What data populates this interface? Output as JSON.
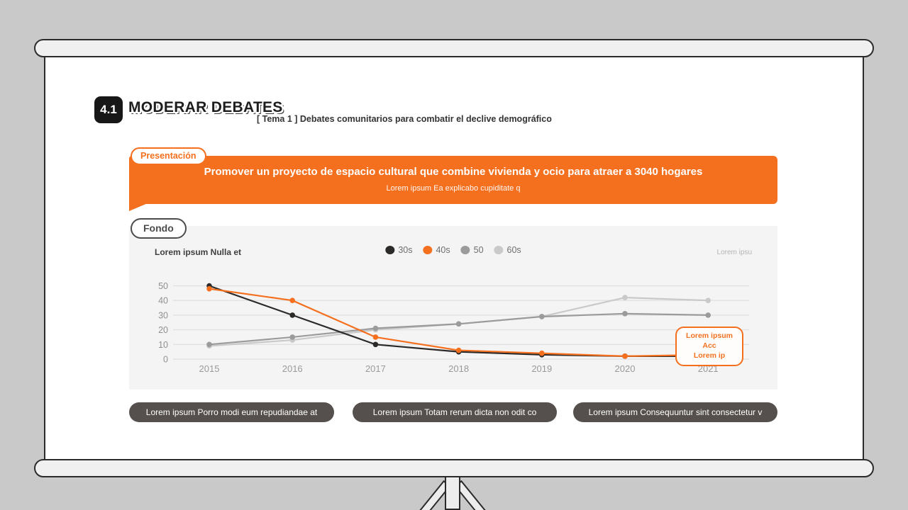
{
  "header": {
    "badge": "4.1",
    "title": "MODERAR DEBATES",
    "subtitle": "[ Tema 1 ] Debates comunitarios para combatir el declive demográfico"
  },
  "presentation": {
    "tag": "Presentación",
    "heading": "Promover un proyecto de espacio cultural que combine vivienda y ocio para atraer a 3040 hogares",
    "subheading": "Lorem ipsum Ea explicabo cupiditate q"
  },
  "background_section": {
    "tag": "Fondo",
    "chart_title": "Lorem ipsum Nulla et",
    "source_note": "Lorem ipsu",
    "callout": {
      "line1": "Lorem ipsum Acc",
      "line2": "Lorem ip"
    }
  },
  "chart_data": {
    "type": "line",
    "title": "Lorem ipsum Nulla et",
    "x": [
      2015,
      2016,
      2017,
      2018,
      2019,
      2020,
      2021
    ],
    "series": [
      {
        "name": "30s",
        "color": "#2b2a28",
        "values": [
          50,
          30,
          10,
          5,
          3,
          2,
          2
        ]
      },
      {
        "name": "40s",
        "color": "#f4701f",
        "values": [
          48,
          40,
          15,
          6,
          4,
          2,
          3
        ]
      },
      {
        "name": "50",
        "color": "#9b9b9b",
        "values": [
          10,
          15,
          21,
          24,
          29,
          31,
          30
        ]
      },
      {
        "name": "60s",
        "color": "#c9c9c9",
        "values": [
          9,
          13,
          20,
          24,
          29,
          42,
          40
        ]
      }
    ],
    "ylim": [
      0,
      50
    ],
    "yticks": [
      0,
      10,
      20,
      30,
      40,
      50
    ],
    "grid": true,
    "legend_position": "top-center"
  },
  "footer_buttons": [
    "Lorem ipsum Porro modi eum repudiandae at",
    "Lorem ipsum Totam rerum dicta non odit co",
    "Lorem ipsum Consequuntur sint consectetur v"
  ],
  "colors": {
    "accent_orange": "#f4701f",
    "badge_black": "#171717",
    "button_gray": "#55504d",
    "card_bg": "#f5f4f4",
    "frame_bg": "#c9c9c9"
  }
}
